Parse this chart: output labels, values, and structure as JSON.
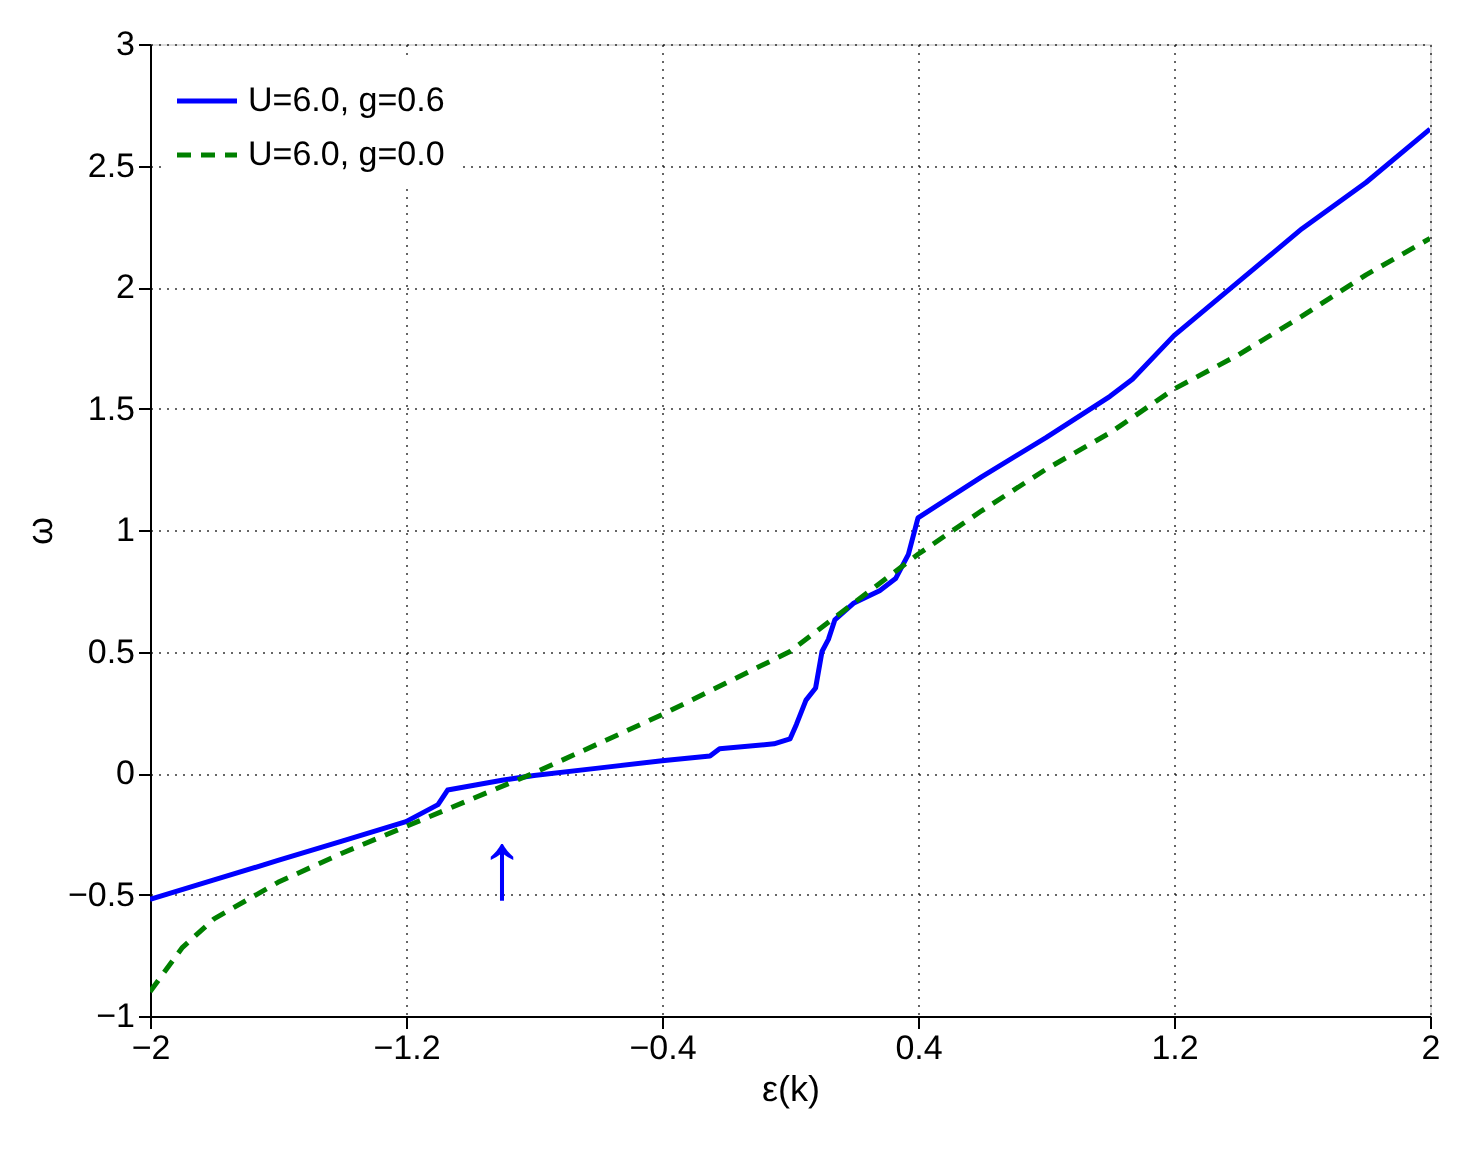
{
  "chart_data": {
    "type": "line",
    "xlabel": "ε(k)",
    "ylabel": "ω",
    "xlim": [
      -2,
      2
    ],
    "ylim": [
      -1,
      3
    ],
    "xticks": [
      -2,
      -1.2,
      -0.4,
      0.4,
      1.2,
      2
    ],
    "yticks": [
      -1,
      -0.5,
      0,
      0.5,
      1,
      1.5,
      2,
      2.5,
      3
    ],
    "grid": true,
    "annotations": [
      "↑"
    ],
    "legend": "top left",
    "marker": "none",
    "series": [
      {
        "name": "U=6.0, g=0.6",
        "color": "#0000ff",
        "line_style": "solid",
        "x": [
          -2,
          -1.8,
          -1.6,
          -1.4,
          -1.2,
          -1.1,
          -1.07,
          -0.9,
          -0.8,
          -0.6,
          -0.4,
          -0.25,
          -0.22,
          -0.05,
          0.0,
          0.02,
          0.05,
          0.08,
          0.1,
          0.12,
          0.14,
          0.2,
          0.28,
          0.33,
          0.37,
          0.4,
          0.6,
          0.8,
          1.0,
          1.07,
          1.2,
          1.4,
          1.6,
          1.8,
          2.0
        ],
        "values": [
          -0.52,
          -0.44,
          -0.36,
          -0.28,
          -0.2,
          -0.13,
          -0.07,
          -0.03,
          -0.01,
          0.02,
          0.05,
          0.07,
          0.1,
          0.12,
          0.14,
          0.2,
          0.3,
          0.35,
          0.5,
          0.55,
          0.63,
          0.7,
          0.75,
          0.8,
          0.9,
          1.05,
          1.22,
          1.38,
          1.55,
          1.62,
          1.8,
          2.02,
          2.24,
          2.43,
          2.65
        ]
      },
      {
        "name": "U=6.0, g=0.0",
        "color": "#008000",
        "line_style": "dashed",
        "x": [
          -2,
          -1.9,
          -1.8,
          -1.6,
          -1.4,
          -1.2,
          -1.0,
          -0.8,
          -0.6,
          -0.4,
          -0.2,
          0.0,
          0.2,
          0.4,
          0.6,
          0.8,
          1.0,
          1.2,
          1.4,
          1.6,
          1.8,
          2.0
        ],
        "values": [
          -0.9,
          -0.72,
          -0.6,
          -0.45,
          -0.33,
          -0.22,
          -0.11,
          0.0,
          0.12,
          0.24,
          0.37,
          0.5,
          0.7,
          0.9,
          1.08,
          1.25,
          1.4,
          1.58,
          1.72,
          1.88,
          2.05,
          2.2
        ]
      }
    ]
  }
}
